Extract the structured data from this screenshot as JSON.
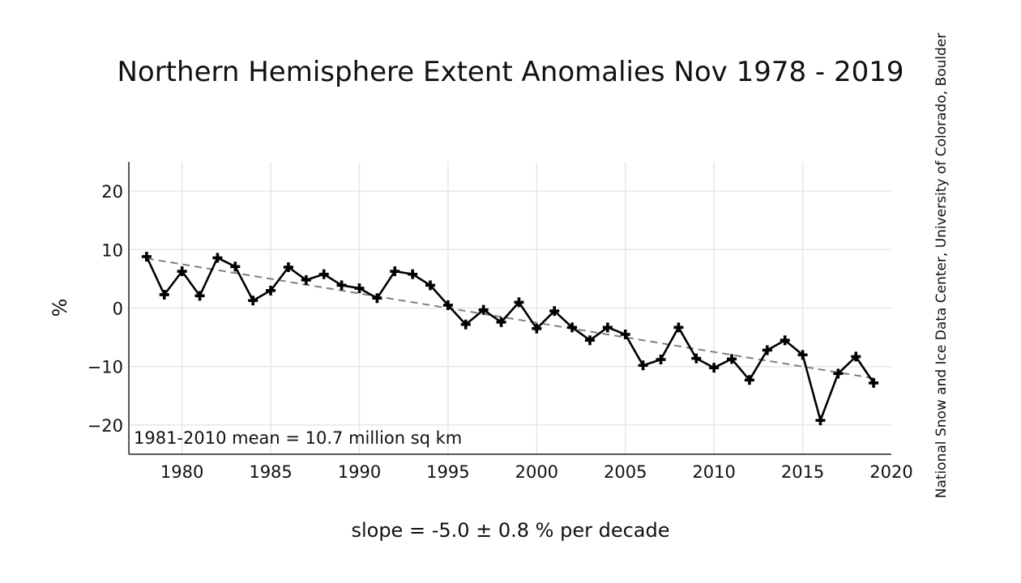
{
  "chart_data": {
    "type": "line",
    "title": "Northern Hemisphere Extent Anomalies Nov 1978 - 2019",
    "xlabel": "slope = -5.0 ± 0.8 % per decade",
    "ylabel": "%",
    "annotation": "1981-2010 mean = 10.7 million sq km",
    "credit": "National Snow and Ice Data Center, University of Colorado, Boulder",
    "xlim": [
      1977,
      2020
    ],
    "ylim": [
      -25,
      25
    ],
    "x_ticks": [
      1980,
      1985,
      1990,
      1995,
      2000,
      2005,
      2010,
      2015,
      2020
    ],
    "y_ticks": [
      20,
      10,
      0,
      -10,
      -20
    ],
    "y_tick_labels": [
      "20",
      "10",
      "0",
      "−10",
      "−20"
    ],
    "grid": true,
    "series": [
      {
        "marker": "cross",
        "color": "#000000",
        "x": [
          1978,
          1979,
          1980,
          1981,
          1982,
          1983,
          1984,
          1985,
          1986,
          1987,
          1988,
          1989,
          1990,
          1991,
          1992,
          1993,
          1994,
          1995,
          1996,
          1997,
          1998,
          1999,
          2000,
          2001,
          2002,
          2003,
          2004,
          2005,
          2006,
          2007,
          2008,
          2009,
          2010,
          2011,
          2012,
          2013,
          2014,
          2015,
          2016,
          2017,
          2018,
          2019
        ],
        "values": [
          8.8,
          2.3,
          6.3,
          2.1,
          8.6,
          7.1,
          1.3,
          3.0,
          7.0,
          4.8,
          5.8,
          3.9,
          3.4,
          1.7,
          6.3,
          5.8,
          3.9,
          0.5,
          -2.8,
          -0.3,
          -2.4,
          1.0,
          -3.5,
          -0.5,
          -3.3,
          -5.5,
          -3.3,
          -4.5,
          -9.8,
          -8.8,
          -3.3,
          -8.6,
          -10.2,
          -8.7,
          -12.3,
          -7.2,
          -5.5,
          -8.0,
          -19.2,
          -11.2,
          -8.3,
          -12.8
        ]
      },
      {
        "name": "trend",
        "style": "dashed",
        "color": "#808080",
        "x": [
          1978,
          2019
        ],
        "values": [
          8.5,
          -12.0
        ]
      }
    ]
  }
}
